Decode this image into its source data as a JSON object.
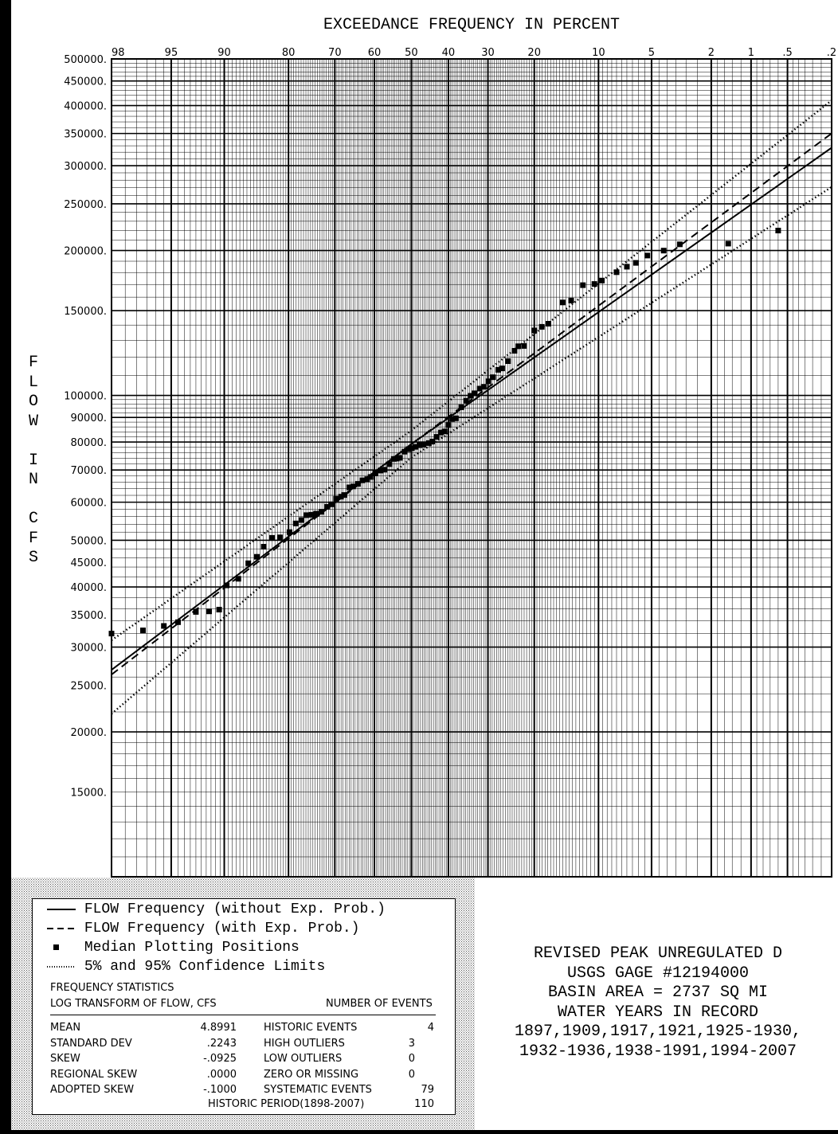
{
  "chart_data": {
    "type": "scatter",
    "title_x_axis": "EXCEEDANCE FREQUENCY IN PERCENT",
    "ylabel": "FLOW IN CFS",
    "x_scale": "normal-probability",
    "y_scale": "log",
    "ylim": [
      10000,
      500000
    ],
    "x_ticks": [
      "98",
      "95",
      "90",
      "80",
      "70",
      "60",
      "50",
      "40",
      "30",
      "20",
      "10",
      "5",
      "2",
      "1",
      ".5",
      ".2"
    ],
    "y_ticks": [
      "500000",
      "450000",
      "400000",
      "350000",
      "300000",
      "250000",
      "200000",
      "150000",
      "100000",
      "90000",
      "80000",
      "70000",
      "60000",
      "50000",
      "45000",
      "40000",
      "35000",
      "30000",
      "25000",
      "20000",
      "15000"
    ],
    "grid": true,
    "series": [
      {
        "name": "FLOW Frequency (without Exp. Prob.)",
        "style": "solid",
        "x": [
          98,
          50,
          0.2
        ],
        "y": [
          26900,
          79200,
          327000
        ]
      },
      {
        "name": "FLOW Frequency (with Exp. Prob.)",
        "style": "dashed",
        "x": [
          98,
          50,
          0.2
        ],
        "y": [
          26300,
          79200,
          350000
        ]
      },
      {
        "name": "5% Confidence Limit",
        "style": "dotted",
        "x": [
          98,
          50,
          0.2
        ],
        "y": [
          31000,
          84500,
          410000
        ]
      },
      {
        "name": "95% Confidence Limit",
        "style": "dotted",
        "x": [
          98,
          50,
          0.2
        ],
        "y": [
          21800,
          74300,
          271000
        ]
      },
      {
        "name": "Median Plotting Positions",
        "style": "marker",
        "points": [
          [
            98.0,
            32000
          ],
          [
            96.7,
            32500
          ],
          [
            95.5,
            33200
          ],
          [
            94.5,
            33800
          ],
          [
            93.0,
            35500
          ],
          [
            91.7,
            35600
          ],
          [
            90.6,
            35900
          ],
          [
            89.7,
            40300
          ],
          [
            88.2,
            41600
          ],
          [
            86.8,
            44800
          ],
          [
            85.5,
            46200
          ],
          [
            84.4,
            48500
          ],
          [
            83.0,
            50600
          ],
          [
            81.6,
            50700
          ],
          [
            79.8,
            52000
          ],
          [
            78.6,
            54200
          ],
          [
            77.4,
            55100
          ],
          [
            76.4,
            56400
          ],
          [
            75.3,
            56500
          ],
          [
            74.3,
            56800
          ],
          [
            73.1,
            57300
          ],
          [
            71.8,
            58700
          ],
          [
            70.8,
            59400
          ],
          [
            69.7,
            61000
          ],
          [
            68.5,
            61600
          ],
          [
            67.7,
            62100
          ],
          [
            66.5,
            64400
          ],
          [
            65.5,
            64700
          ],
          [
            64.3,
            65500
          ],
          [
            63.1,
            66600
          ],
          [
            61.9,
            67000
          ],
          [
            61.0,
            67700
          ],
          [
            59.7,
            68900
          ],
          [
            58.4,
            69800
          ],
          [
            57.3,
            70100
          ],
          [
            56.0,
            72000
          ],
          [
            54.8,
            73800
          ],
          [
            54.0,
            73900
          ],
          [
            53.1,
            74200
          ],
          [
            51.9,
            76400
          ],
          [
            50.9,
            77300
          ],
          [
            49.9,
            77700
          ],
          [
            48.9,
            78200
          ],
          [
            47.7,
            78800
          ],
          [
            46.7,
            79000
          ],
          [
            45.3,
            79600
          ],
          [
            44.3,
            80200
          ],
          [
            43.1,
            82000
          ],
          [
            42.0,
            83700
          ],
          [
            41.0,
            84200
          ],
          [
            40.0,
            86800
          ],
          [
            39.0,
            89300
          ],
          [
            38.0,
            89600
          ],
          [
            36.6,
            94500
          ],
          [
            35.4,
            97500
          ],
          [
            34.2,
            99800
          ],
          [
            33.3,
            101000
          ],
          [
            32.0,
            103300
          ],
          [
            31.0,
            104200
          ],
          [
            29.9,
            107000
          ],
          [
            28.8,
            109100
          ],
          [
            27.6,
            113000
          ],
          [
            26.7,
            113800
          ],
          [
            25.4,
            117800
          ],
          [
            24.0,
            123800
          ],
          [
            23.2,
            126500
          ],
          [
            22.0,
            126700
          ],
          [
            20.0,
            136400
          ],
          [
            18.6,
            138800
          ],
          [
            17.4,
            140900
          ],
          [
            15.0,
            156000
          ],
          [
            13.7,
            157400
          ],
          [
            12.0,
            169400
          ],
          [
            10.5,
            170400
          ],
          [
            9.6,
            173200
          ],
          [
            8.0,
            180300
          ],
          [
            7.0,
            185100
          ],
          [
            6.2,
            188500
          ],
          [
            5.3,
            195200
          ],
          [
            4.2,
            199900
          ],
          [
            3.3,
            206000
          ],
          [
            1.5,
            206700
          ],
          [
            0.6,
            220000
          ]
        ]
      }
    ]
  },
  "legend": {
    "solid": "FLOW Frequency (without Exp. Prob.)",
    "dashed": "FLOW Frequency (with Exp. Prob.)",
    "marker": "Median  Plotting Positions",
    "dotted": "5% and 95% Confidence Limits"
  },
  "stats": {
    "heading1": "FREQUENCY STATISTICS",
    "heading2": "LOG TRANSFORM OF FLOW, CFS",
    "heading3": "NUMBER OF EVENTS",
    "rows": [
      {
        "label": "MEAN",
        "value": "4.8991",
        "event_label": "HISTORIC EVENTS",
        "event_value": "4"
      },
      {
        "label": "STANDARD DEV",
        "value": ".2243",
        "event_label": "HIGH OUTLIERS",
        "event_value": "3"
      },
      {
        "label": "SKEW",
        "value": "-.0925",
        "event_label": "LOW OUTLIERS",
        "event_value": "0"
      },
      {
        "label": "REGIONAL SKEW",
        "value": ".0000",
        "event_label": "ZERO OR MISSING",
        "event_value": "0"
      },
      {
        "label": "ADOPTED SKEW",
        "value": "-.1000",
        "event_label": "SYSTEMATIC EVENTS",
        "event_value": "79"
      }
    ],
    "historic_label": "HISTORIC PERIOD(1898-2007)",
    "historic_value": "110"
  },
  "title_block": {
    "line1": "REVISED PEAK UNREGULATED D",
    "line2": "USGS GAGE #12194000",
    "line3": "BASIN AREA = 2737 SQ MI",
    "line4": "WATER YEARS IN RECORD",
    "line5": "1897,1909,1917,1921,1925-1930,",
    "line6": "1932-1936,1938-1991,1994-2007"
  },
  "colors": {
    "ink": "#000000",
    "paper": "#ffffff",
    "shade": "#cfcfcf"
  }
}
